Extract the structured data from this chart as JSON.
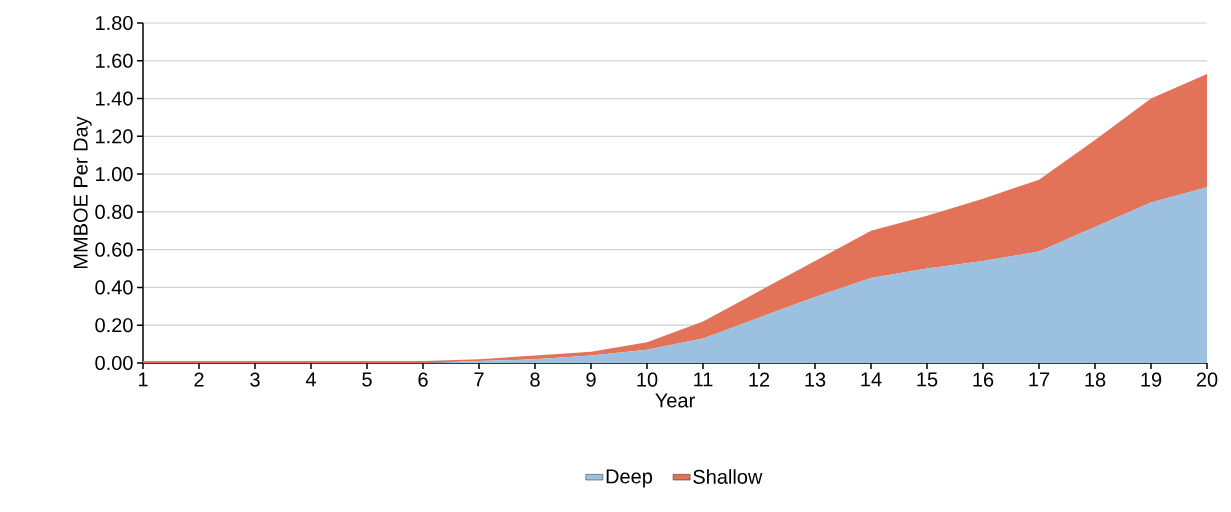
{
  "chart_data": {
    "type": "area",
    "stacked": true,
    "xlabel": "Year",
    "ylabel": "MMBOE Per Day",
    "x": [
      1,
      2,
      3,
      4,
      5,
      6,
      7,
      8,
      9,
      10,
      11,
      12,
      13,
      14,
      15,
      16,
      17,
      18,
      19,
      20
    ],
    "series": [
      {
        "name": "Deep",
        "color": "#9bc0e0",
        "values": [
          0,
          0,
          0,
          0,
          0,
          0,
          0.01,
          0.02,
          0.04,
          0.07,
          0.13,
          0.24,
          0.35,
          0.45,
          0.5,
          0.54,
          0.59,
          0.72,
          0.85,
          0.93
        ]
      },
      {
        "name": "Shallow",
        "color": "#e37358",
        "values": [
          0.01,
          0.01,
          0.01,
          0.01,
          0.01,
          0.01,
          0.01,
          0.02,
          0.02,
          0.04,
          0.09,
          0.14,
          0.19,
          0.25,
          0.28,
          0.33,
          0.38,
          0.46,
          0.55,
          0.6
        ]
      }
    ],
    "xlim": [
      1,
      20
    ],
    "xticks": [
      1,
      2,
      3,
      4,
      5,
      6,
      7,
      8,
      9,
      10,
      11,
      12,
      13,
      14,
      15,
      16,
      17,
      18,
      19,
      20
    ],
    "ylim": [
      0,
      1.8
    ],
    "yticks": [
      {
        "value": 0,
        "label": "0.00"
      },
      {
        "value": 0.2,
        "label": "0.20"
      },
      {
        "value": 0.4,
        "label": "0.40"
      },
      {
        "value": 0.6,
        "label": "0.60"
      },
      {
        "value": 0.8,
        "label": "0.80"
      },
      {
        "value": 1.0,
        "label": "1.00"
      },
      {
        "value": 1.2,
        "label": "1.20"
      },
      {
        "value": 1.4,
        "label": "1.40"
      },
      {
        "value": 1.6,
        "label": "1.60"
      },
      {
        "value": 1.8,
        "label": "1.80"
      }
    ],
    "grid": "y",
    "legend": "bottom"
  }
}
